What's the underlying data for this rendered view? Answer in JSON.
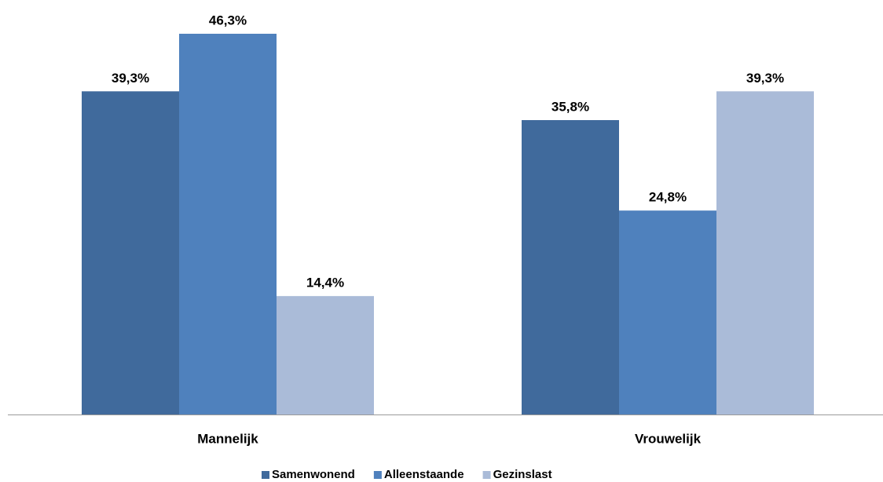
{
  "chart_data": {
    "type": "bar",
    "categories": [
      "Mannelijk",
      "Vrouwelijk"
    ],
    "series": [
      {
        "name": "Samenwonend",
        "color": "#406a9c",
        "values": [
          39.3,
          35.8
        ],
        "value_labels": [
          "39,3%",
          "35,8%"
        ]
      },
      {
        "name": "Alleenstaande",
        "color": "#4f81bd",
        "values": [
          46.3,
          24.8
        ],
        "value_labels": [
          "46,3%",
          "24,8%"
        ]
      },
      {
        "name": "Gezinslast",
        "color": "#aabbd8",
        "values": [
          14.4,
          39.3
        ],
        "value_labels": [
          "14,4%",
          "39,3%"
        ]
      }
    ],
    "legend": "bottom"
  }
}
